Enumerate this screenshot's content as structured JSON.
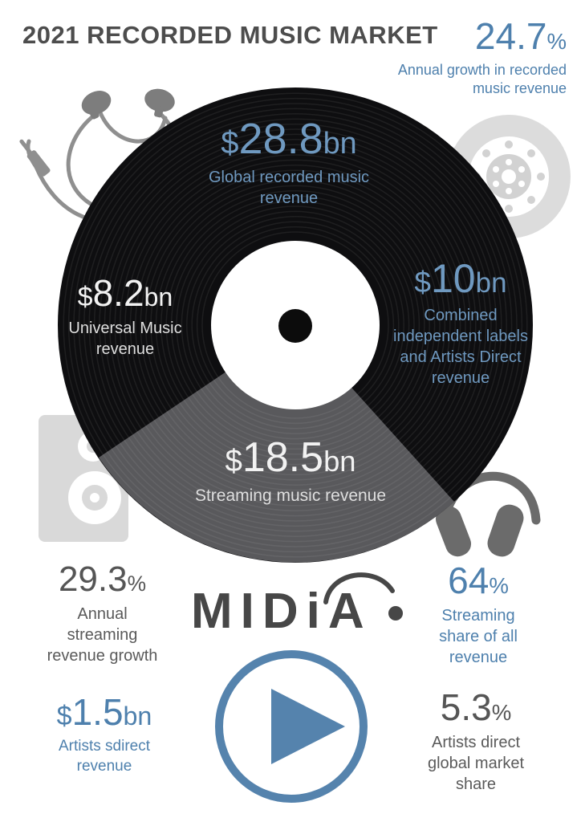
{
  "header": {
    "title": "2021 RECORDED MUSIC MARKET",
    "growth": {
      "value": "24.7",
      "unit": "%",
      "label": "Annual growth in recorded\nmusic revenue"
    }
  },
  "record": {
    "global": {
      "currency": "$",
      "value": "28.8",
      "suffix": "bn",
      "label": "Global recorded music\nrevenue"
    },
    "universal": {
      "currency": "$",
      "value": "8.2",
      "suffix": "bn",
      "label": "Universal Music\nrevenue"
    },
    "independent": {
      "currency": "$",
      "value": "10",
      "suffix": "bn",
      "label": "Combined\nindependent labels\nand Artists Direct\nrevenue"
    },
    "streaming": {
      "currency": "$",
      "value": "18.5",
      "suffix": "bn",
      "label": "Streaming music revenue"
    }
  },
  "stats": {
    "streaming_growth": {
      "value": "29.3",
      "unit": "%",
      "label": "Annual\nstreaming\nrevenue growth"
    },
    "streaming_share": {
      "value": "64",
      "unit": "%",
      "label": "Streaming\nshare of all\nrevenue"
    },
    "artists_direct_revenue": {
      "currency": "$",
      "value": "1.5",
      "suffix": "bn",
      "label": "Artists sdirect\nrevenue"
    },
    "artists_direct_share": {
      "value": "5.3",
      "unit": "%",
      "label": "Artists direct\nglobal market\nshare"
    }
  },
  "logo": {
    "text": "MIDiA"
  },
  "colors": {
    "accent_blue": "#4e80ad",
    "accent_blue_on_dark": "#6f99c0",
    "dark_text": "#4d4d4d",
    "record_black": "#0e0e10",
    "streaming_wedge_gray": "#59595c",
    "decor_light_gray": "#d9d9d9",
    "decor_mid_gray": "#8f8f8f",
    "decor_dark_gray": "#6b6b6b"
  },
  "icons": {
    "earbuds": "earbuds-icon",
    "tape_reel": "tape-reel-icon",
    "speaker": "speaker-icon",
    "headphones": "headphones-icon",
    "play": "play-icon",
    "vinyl_record": "vinyl-record"
  }
}
